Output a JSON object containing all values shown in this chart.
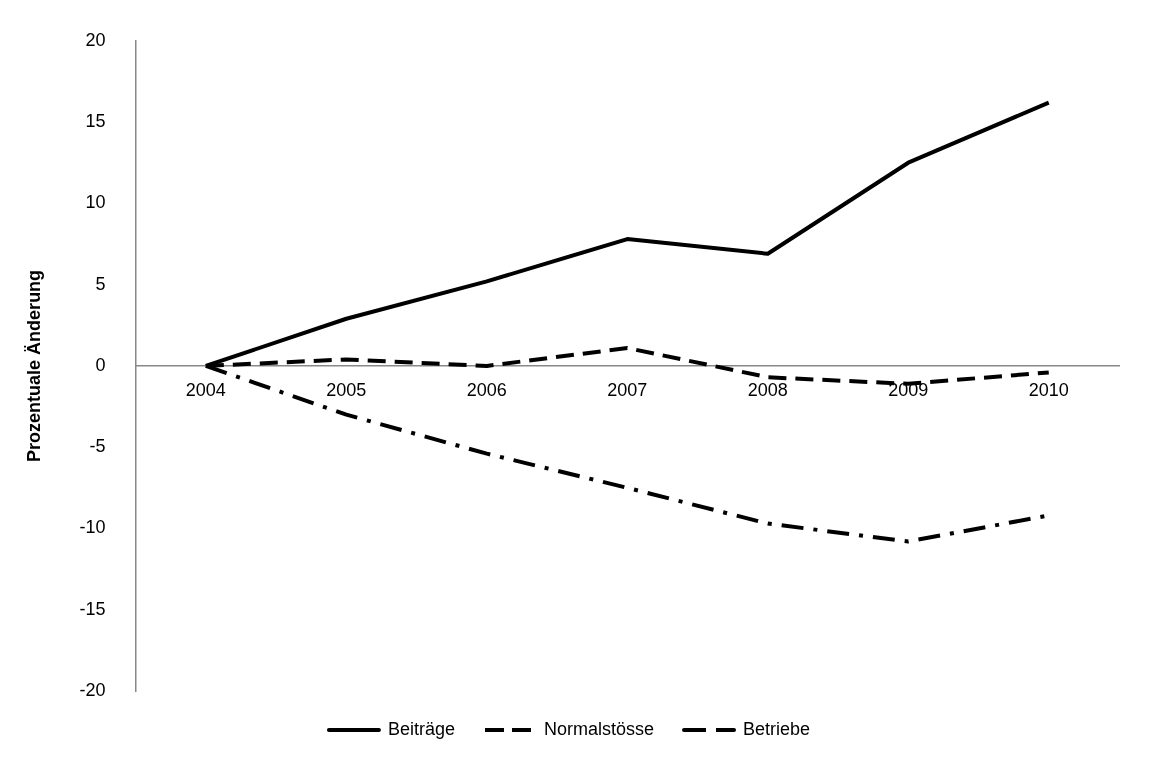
{
  "chart_data": {
    "type": "line",
    "ylabel": "Prozentuale Änderung",
    "categories": [
      "2004",
      "2005",
      "2006",
      "2007",
      "2008",
      "2009",
      "2010"
    ],
    "series": [
      {
        "name": "Beiträge",
        "color": "#000000",
        "line_style": "solid",
        "values": [
          0,
          2.9,
          5.2,
          7.8,
          6.9,
          12.5,
          16.2
        ]
      },
      {
        "name": "Normalstösse",
        "color": "#000000",
        "line_style": "dashed",
        "values": [
          0,
          0.4,
          0,
          1.1,
          -0.7,
          -1.1,
          -0.4
        ]
      },
      {
        "name": "Betriebe",
        "color": "#000000",
        "line_style": "dashdot",
        "values": [
          0,
          -3,
          -5.4,
          -7.5,
          -9.7,
          -10.8,
          -9.2
        ]
      }
    ],
    "ylim": [
      -20,
      20
    ],
    "yticks": [
      -20,
      -15,
      -10,
      -5,
      0,
      5,
      10,
      15,
      20
    ],
    "grid": false,
    "legend": "bottom",
    "marker": "none"
  }
}
